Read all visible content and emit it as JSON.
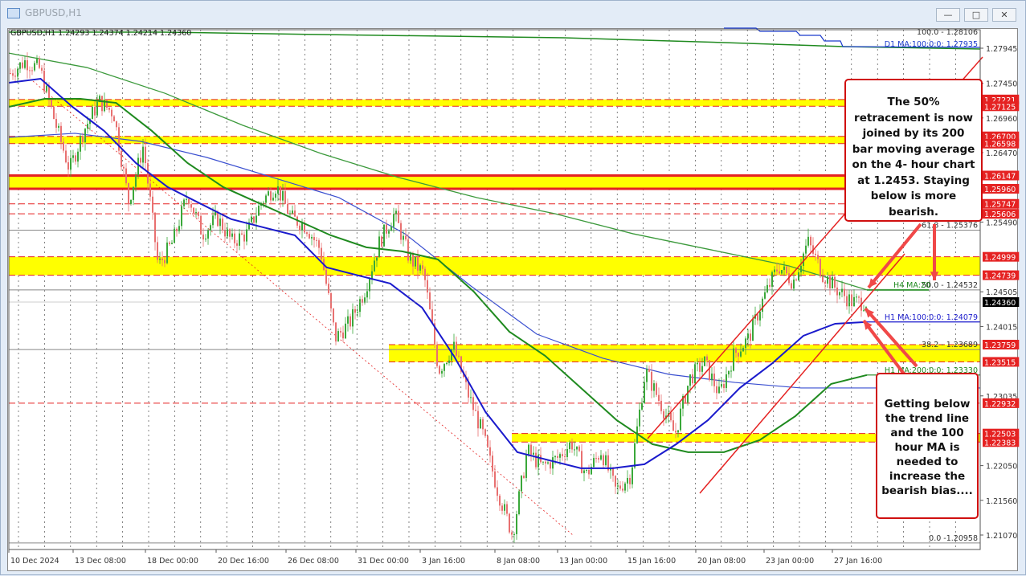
{
  "window": {
    "title": "GBPUSD,H1",
    "buttons": [
      "minimize",
      "restore",
      "close"
    ]
  },
  "ohlc_header": "GBPUSD,H1  1.24293 1.24374 1.24214 1.24360",
  "colors": {
    "bull": "#3aa83a",
    "bear": "#e87070",
    "ma_h1_100": "#1a1acc",
    "ma_h1_200": "#1f8a1f",
    "ma_h4_200": "#3c9a3c",
    "ma_h4_100": "#3a4fd0",
    "zone": "#ffff00",
    "level": "#e52222",
    "current": "#000000"
  },
  "annotations": {
    "top": "The 50% retracement is now joined by its 200 bar moving average on the 4- hour chart at 1.2453. Staying below is more bearish.",
    "bottom": "Getting below the trend line and the 100 hour MA is needed to increase the bearish bias...."
  },
  "chart_data": {
    "type": "candlestick",
    "symbol": "GBPUSD",
    "timeframe": "H1",
    "ylim": [
      1.2065,
      1.2845
    ],
    "x_tick_labels": [
      "10 Dec 2024",
      "13 Dec 08:00",
      "18 Dec 00:00",
      "20 Dec 16:00",
      "26 Dec 08:00",
      "31 Dec 00:00",
      "3 Jan 16:00",
      "8 Jan 08:00",
      "13 Jan 00:00",
      "15 Jan 16:00",
      "20 Jan 08:00",
      "23 Jan 00:00",
      "27 Jan 16:00"
    ],
    "y_tick_labels": [
      "1.27945",
      "1.27450",
      "1.26960",
      "1.26470",
      "1.25490",
      "1.24505",
      "1.24015",
      "1.23035",
      "1.22050",
      "1.21560",
      "1.21070"
    ],
    "current_price": "1.24360",
    "price_path": [
      1.27593,
      1.27763,
      1.2765,
      1.26913,
      1.26232,
      1.26799,
      1.27196,
      1.27026,
      1.25778,
      1.26572,
      1.2487,
      1.25211,
      1.25892,
      1.25324,
      1.25551,
      1.25211,
      1.25324,
      1.25778,
      1.26005,
      1.25551,
      1.25438,
      1.25097,
      1.23849,
      1.24076,
      1.2453,
      1.25211,
      1.25608,
      1.24984,
      1.24757,
      1.23396,
      1.23736,
      1.23055,
      1.22488,
      1.21694,
      1.2107,
      1.22261,
      1.22034,
      1.22148,
      1.22375,
      1.21921,
      1.22261,
      1.21694,
      1.21921,
      1.23396,
      1.22942,
      1.22488,
      1.23282,
      1.23509,
      1.23055,
      1.23623,
      1.23849,
      1.24417,
      1.2487,
      1.24644,
      1.25211,
      1.24757,
      1.2453,
      1.2436,
      1.2436
    ],
    "level_labels": [
      "1.27221",
      "1.27125",
      "1.26700",
      "1.26598",
      "1.26147",
      "1.25960",
      "1.25747",
      "1.25606",
      "1.24999",
      "1.24739",
      "1.23759",
      "1.23515",
      "1.22932",
      "1.22503",
      "1.22383"
    ],
    "zones": [
      [
        1.27221,
        1.27125
      ],
      [
        1.267,
        1.26598
      ],
      [
        1.26147,
        1.2596
      ],
      [
        1.24999,
        1.24739
      ],
      [
        1.23759,
        1.23515
      ],
      [
        1.22503,
        1.22383
      ]
    ],
    "dashed_levels": [
      1.25747,
      1.25606,
      1.22932
    ],
    "fib_levels": [
      {
        "label": "100.0 - 1.28106",
        "price": 1.28106
      },
      {
        "label": "61.8 - 1.25376",
        "price": 1.25376
      },
      {
        "label": "50.0 - 1.24532",
        "price": 1.24532
      },
      {
        "label": "38.2 - 1.23689",
        "price": 1.23689
      },
      {
        "label": "0.0 -1.20958",
        "price": 1.20958
      }
    ],
    "ma_labels": [
      {
        "label": "D1 MA:100:0:0: 1.27935",
        "price": 1.27935
      },
      {
        "label": "H4 MA:20",
        "price": 1.24532
      },
      {
        "label": "H1 MA:100:0:0: 1.24079",
        "price": 1.24079
      },
      {
        "label": "H1 MA:200:0:0: 1.23330",
        "price": 1.2333
      }
    ],
    "series": [
      {
        "key": "ma_h1_100",
        "values": [
          1.27457,
          1.27514,
          1.27117,
          1.26777,
          1.26323,
          1.25983,
          1.25756,
          1.2553,
          1.25416,
          1.25303,
          1.24849,
          1.24735,
          1.24622,
          1.24282,
          1.23601,
          1.22807,
          1.2224,
          1.22126,
          1.22013,
          1.22013,
          1.2207,
          1.22353,
          1.22693,
          1.23147,
          1.23487,
          1.23884,
          1.24054,
          1.24079
        ]
      },
      {
        "key": "ma_h1_200",
        "values": [
          1.27117,
          1.2723,
          1.2723,
          1.27173,
          1.26777,
          1.26323,
          1.25983,
          1.25756,
          1.2553,
          1.25303,
          1.25133,
          1.25076,
          1.24962,
          1.24509,
          1.23941,
          1.23601,
          1.23147,
          1.22693,
          1.22353,
          1.2224,
          1.2224,
          1.2241,
          1.2275,
          1.23204,
          1.2333
        ]
      },
      {
        "key": "ma_h4_100",
        "values": [
          1.26686,
          1.26743,
          1.26629,
          1.26402,
          1.26119,
          1.25835,
          1.25325,
          1.24587,
          1.23906,
          1.23566,
          1.23339,
          1.23225,
          1.23147,
          1.23147
        ]
      },
      {
        "key": "ma_h4_200",
        "values": [
          1.27876,
          1.27672,
          1.27309,
          1.26856,
          1.26459,
          1.26119,
          1.25835,
          1.25608,
          1.25325,
          1.25098,
          1.24871,
          1.24532
        ]
      }
    ]
  }
}
